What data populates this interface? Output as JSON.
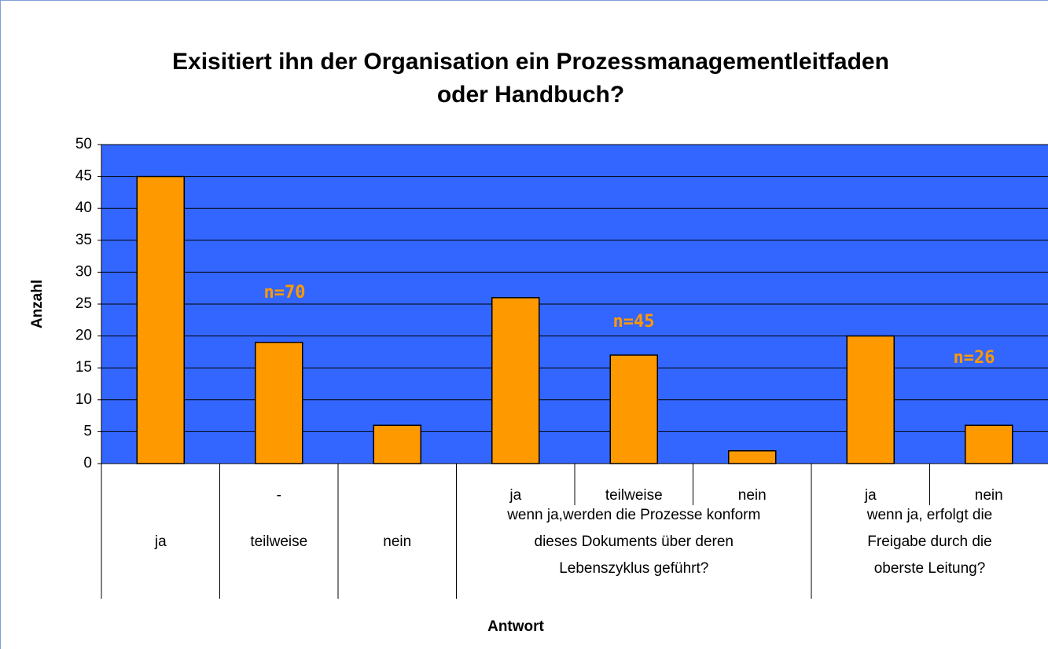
{
  "chart_data": {
    "type": "bar",
    "title": [
      "Exisitiert ihn der Organisation ein Prozessmanagementleitfaden",
      "oder Handbuch?"
    ],
    "y_label": "Anzahl",
    "x_label": "Antwort",
    "categories": [
      null,
      "-",
      null,
      "ja",
      "teilweise",
      "nein",
      "ja",
      "nein"
    ],
    "groups": [
      {
        "label": [
          "ja"
        ],
        "size": 1
      },
      {
        "label": [
          "teilweise"
        ],
        "size": 1
      },
      {
        "label": [
          "nein"
        ],
        "size": 1
      },
      {
        "label": [
          "wenn ja,werden die Prozesse konform",
          "dieses Dokuments über deren",
          "Lebenszyklus geführt?"
        ],
        "size": 3
      },
      {
        "label": [
          "wenn ja, erfolgt die",
          "Freigabe durch die",
          "oberste Leitung?"
        ],
        "size": 2
      }
    ],
    "values": [
      45,
      19,
      6,
      26,
      17,
      2,
      20,
      6
    ],
    "color": "#ff9900",
    "background": "#3366ff",
    "annotations": [
      "n=70",
      "n=45",
      "n=26"
    ],
    "ylim": [
      0,
      50
    ],
    "yticks": [
      0,
      5,
      10,
      15,
      20,
      25,
      30,
      35,
      40,
      45,
      50
    ],
    "grid": true
  }
}
